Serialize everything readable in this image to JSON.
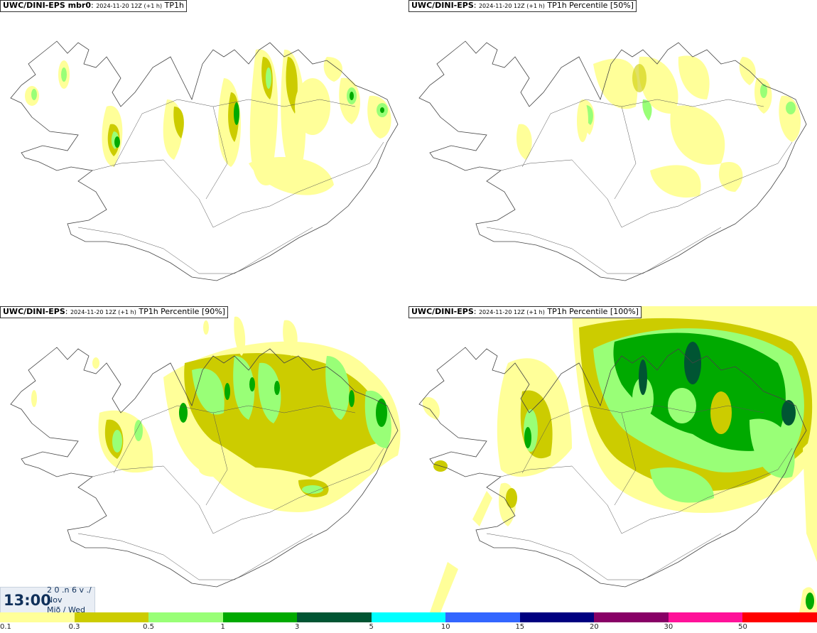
{
  "panels": [
    {
      "model": "UWC/DINI-EPS mbr0",
      "sep": ": ",
      "date": "2024-11-20 12Z (+1 h)",
      "param": "TP1h"
    },
    {
      "model": "UWC/DINI-EPS",
      "sep": ": ",
      "date": "2024-11-20 12Z (+1 h)",
      "param": "TP1h Percentile [50%]"
    },
    {
      "model": "UWC/DINI-EPS",
      "sep": ": ",
      "date": "2024-11-20 12Z (+1 h)",
      "param": "TP1h Percentile [90%]"
    },
    {
      "model": "UWC/DINI-EPS",
      "sep": ": ",
      "date": "2024-11-20 12Z (+1 h)",
      "param": "TP1h Percentile [100%]"
    }
  ],
  "valid_time": {
    "time": "13:00",
    "line1": "2 0 .n 6 v ./",
    "line2": "Nov",
    "line3": "Mið / Wed"
  },
  "legend": {
    "levels": [
      "0.1",
      "0.3",
      "0.5",
      "1",
      "3",
      "5",
      "10",
      "15",
      "20",
      "30",
      "50"
    ],
    "colors": [
      "#ffff99",
      "#cccc00",
      "#99ff77",
      "#00aa00",
      "#005533",
      "#00ffff",
      "#3366ff",
      "#000080",
      "#880066",
      "#ff1199",
      "#ff0000"
    ]
  },
  "colors": {
    "coast": "#444444",
    "roads": "#555555",
    "precip_low": "#ffff99",
    "precip_mid": "#cccc00",
    "precip_high": "#99ff77",
    "precip_vhigh": "#00aa00",
    "precip_max": "#005533"
  }
}
